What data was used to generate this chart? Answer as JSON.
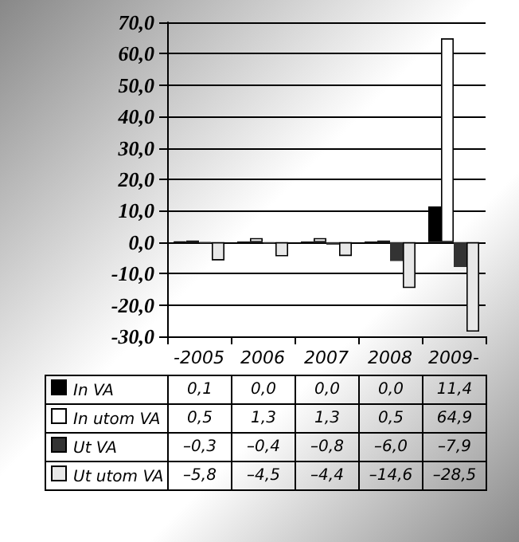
{
  "chart_data": {
    "type": "bar",
    "categories": [
      "-2005",
      "2006",
      "2007",
      "2008",
      "2009-"
    ],
    "series": [
      {
        "name": "In VA",
        "color": "#000000",
        "values": [
          0.1,
          0.0,
          0.0,
          0.0,
          11.4
        ],
        "value_labels": [
          "0,1",
          "0,0",
          "0,0",
          "0,0",
          "11,4"
        ]
      },
      {
        "name": "In utom VA",
        "color": "#ffffff",
        "values": [
          0.5,
          1.3,
          1.3,
          0.5,
          64.9
        ],
        "value_labels": [
          "0,5",
          "1,3",
          "1,3",
          "0,5",
          "64,9"
        ]
      },
      {
        "name": "Ut VA",
        "color": "#333333",
        "values": [
          -0.3,
          -0.4,
          -0.8,
          -6.0,
          -7.9
        ],
        "value_labels": [
          "–0,3",
          "–0,4",
          "–0,8",
          "–6,0",
          "–7,9"
        ]
      },
      {
        "name": "Ut utom VA",
        "color": "#e8e8e8",
        "values": [
          -5.8,
          -4.5,
          -4.4,
          -14.6,
          -28.5
        ],
        "value_labels": [
          "–5,8",
          "–4,5",
          "–4,4",
          "–14,6",
          "–28,5"
        ]
      }
    ],
    "ylim": [
      -30,
      70
    ],
    "yticks": [
      {
        "value": -30,
        "label": "-30,0"
      },
      {
        "value": -20,
        "label": "-20,0"
      },
      {
        "value": -10,
        "label": "-10,0"
      },
      {
        "value": 0,
        "label": "0,0"
      },
      {
        "value": 10,
        "label": "10,0"
      },
      {
        "value": 20,
        "label": "20,0"
      },
      {
        "value": 30,
        "label": "30,0"
      },
      {
        "value": 40,
        "label": "40,0"
      },
      {
        "value": 50,
        "label": "50,0"
      },
      {
        "value": 60,
        "label": "60,0"
      },
      {
        "value": 70,
        "label": "70,0"
      }
    ],
    "grid": "y",
    "legend": "bottom"
  }
}
